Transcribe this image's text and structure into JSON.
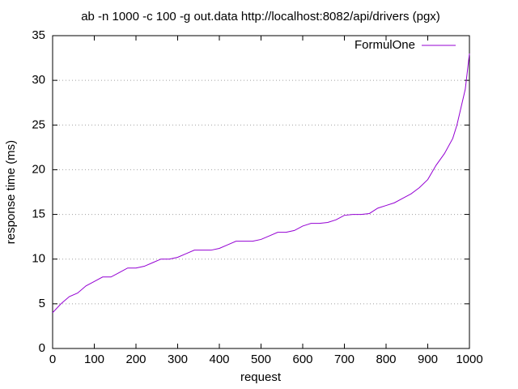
{
  "chart_data": {
    "type": "line",
    "title": "ab -n 1000 -c 100 -g out.data http://localhost:8082/api/drivers (pgx)",
    "x_label": "request",
    "y_label": "response time (ms)",
    "x": [
      0,
      20,
      40,
      60,
      80,
      100,
      120,
      140,
      160,
      180,
      200,
      220,
      240,
      260,
      280,
      300,
      320,
      340,
      360,
      380,
      400,
      420,
      440,
      460,
      480,
      500,
      520,
      540,
      560,
      580,
      600,
      620,
      640,
      660,
      680,
      700,
      720,
      740,
      760,
      780,
      800,
      820,
      840,
      860,
      880,
      900,
      920,
      940,
      960,
      970,
      980,
      990,
      1000
    ],
    "series": [
      {
        "name": "FormulOne",
        "color": "#9400d3",
        "values": [
          4,
          5,
          5.8,
          6.2,
          7,
          7.5,
          8,
          8,
          8.5,
          9,
          9,
          9.2,
          9.6,
          10,
          10,
          10.2,
          10.6,
          11,
          11,
          11,
          11.2,
          11.6,
          12,
          12,
          12,
          12.2,
          12.6,
          13,
          13,
          13.2,
          13.7,
          14,
          14,
          14.1,
          14.4,
          14.9,
          15,
          15,
          15.1,
          15.7,
          16,
          16.3,
          16.8,
          17.3,
          18,
          18.9,
          20.5,
          21.8,
          23.5,
          25,
          27,
          29,
          33
        ]
      }
    ],
    "xlim": [
      0,
      1000
    ],
    "xticks": [
      0,
      100,
      200,
      300,
      400,
      500,
      600,
      700,
      800,
      900,
      1000
    ],
    "ylim": [
      0,
      35
    ],
    "yticks": [
      0,
      5,
      10,
      15,
      20,
      25,
      30,
      35
    ],
    "grid": "y",
    "legend": "top-right"
  }
}
